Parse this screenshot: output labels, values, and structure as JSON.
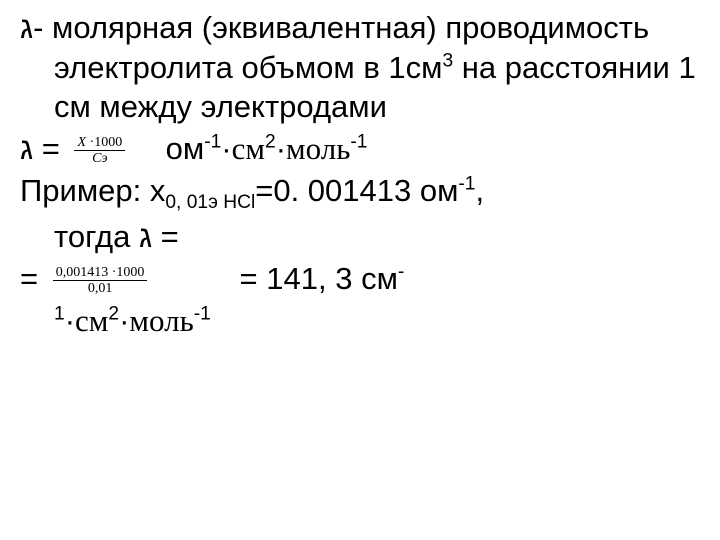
{
  "def": {
    "lambda": "ג",
    "l1": "- молярная (эквивалентная)",
    "l2": "проводимость электролита",
    "l3a": "объмом в 1см",
    "l3sup": "3",
    "l3b": " на расстоянии 1",
    "l4": "см между электродами"
  },
  "formula": {
    "lhs": "ג =",
    "frac_num_a": "X",
    "frac_num_dot": " ·",
    "frac_num_b": "1000",
    "frac_den": "Cэ",
    "units_a": " ом",
    "units_sup1": "-1",
    "units_b": "·",
    "units_cm": "см",
    "units_sup2": "2",
    "units_c": "·",
    "units_mol": "моль",
    "units_sup3": "-1"
  },
  "example": {
    "prefix": "Пример: х",
    "sub": "0, 01э HCl",
    "mid": "=0. 001413 ом",
    "sup": "-1",
    "comma": ",",
    "line2a": "тогда ",
    "line2b": "ג",
    "line2c": " ="
  },
  "result": {
    "eq1": "=",
    "frac_num": "0,001413 ·1000",
    "frac_den": "0,01",
    "eq2": "= 141, 3 см",
    "supA": "-",
    "tail_a": "1",
    "tail_b": "·",
    "tail_cm": "см",
    "tail_sup2": "2",
    "tail_c": "·",
    "tail_mol": "моль",
    "tail_sup3": "-1"
  }
}
